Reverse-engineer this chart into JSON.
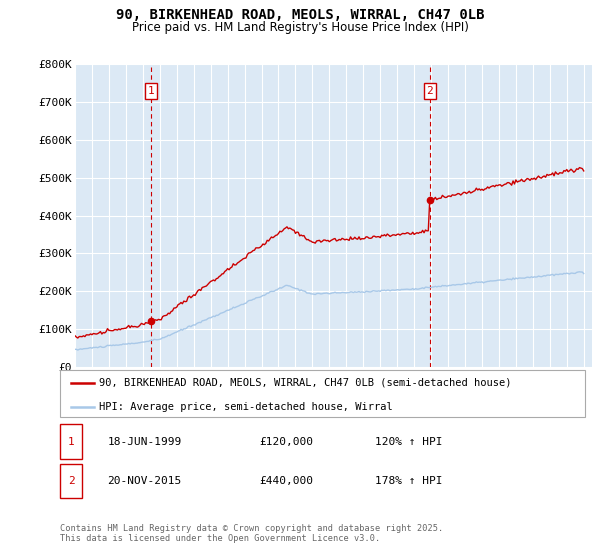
{
  "title": "90, BIRKENHEAD ROAD, MEOLS, WIRRAL, CH47 0LB",
  "subtitle": "Price paid vs. HM Land Registry's House Price Index (HPI)",
  "y_max": 800000,
  "y_ticks": [
    0,
    100000,
    200000,
    300000,
    400000,
    500000,
    600000,
    700000,
    800000
  ],
  "y_tick_labels": [
    "£0",
    "£100K",
    "£200K",
    "£300K",
    "£400K",
    "£500K",
    "£600K",
    "£700K",
    "£800K"
  ],
  "purchase1_year": 1999.46,
  "purchase1_price": 120000,
  "purchase2_year": 2015.89,
  "purchase2_price": 440000,
  "line_color_hpi": "#a8c8e8",
  "line_color_price": "#cc0000",
  "marker_color": "#cc0000",
  "dashed_color": "#cc0000",
  "plot_bg": "#dce9f5",
  "grid_color": "#ffffff",
  "legend_label_price": "90, BIRKENHEAD ROAD, MEOLS, WIRRAL, CH47 0LB (semi-detached house)",
  "legend_label_hpi": "HPI: Average price, semi-detached house, Wirral",
  "annotation1_date": "18-JUN-1999",
  "annotation1_price": "£120,000",
  "annotation1_hpi": "120% ↑ HPI",
  "annotation2_date": "20-NOV-2015",
  "annotation2_price": "£440,000",
  "annotation2_hpi": "178% ↑ HPI",
  "footer": "Contains HM Land Registry data © Crown copyright and database right 2025.\nThis data is licensed under the Open Government Licence v3.0."
}
